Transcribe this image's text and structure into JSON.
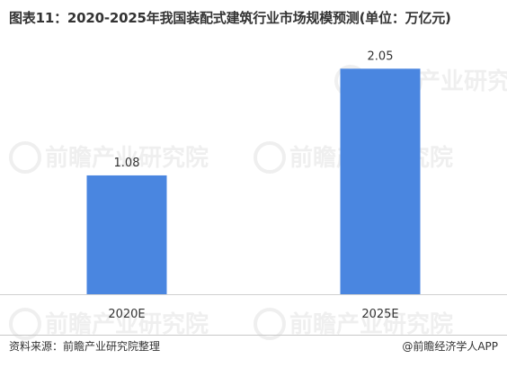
{
  "title": "图表11：2020-2025年我国装配式建筑行业市场规模预测(单位：万亿元)",
  "footer": {
    "source": "资料来源：前瞻产业研究院整理",
    "credit": "@前瞻经济学人APP"
  },
  "colors": {
    "bar": "#4a86e0",
    "axis": "#d0d0d0",
    "text": "#333333"
  },
  "watermark": "前瞻产业研究院",
  "chart_data": {
    "type": "bar",
    "title": "图表11：2020-2025年我国装配式建筑行业市场规模预测(单位：万亿元)",
    "categories": [
      "2020E",
      "2025E"
    ],
    "values": [
      1.08,
      2.05
    ],
    "data_labels": [
      "1.08",
      "2.05"
    ],
    "ylim": [
      0,
      2.2
    ],
    "grid": false,
    "legend": "none",
    "xlabel": "",
    "ylabel": ""
  }
}
